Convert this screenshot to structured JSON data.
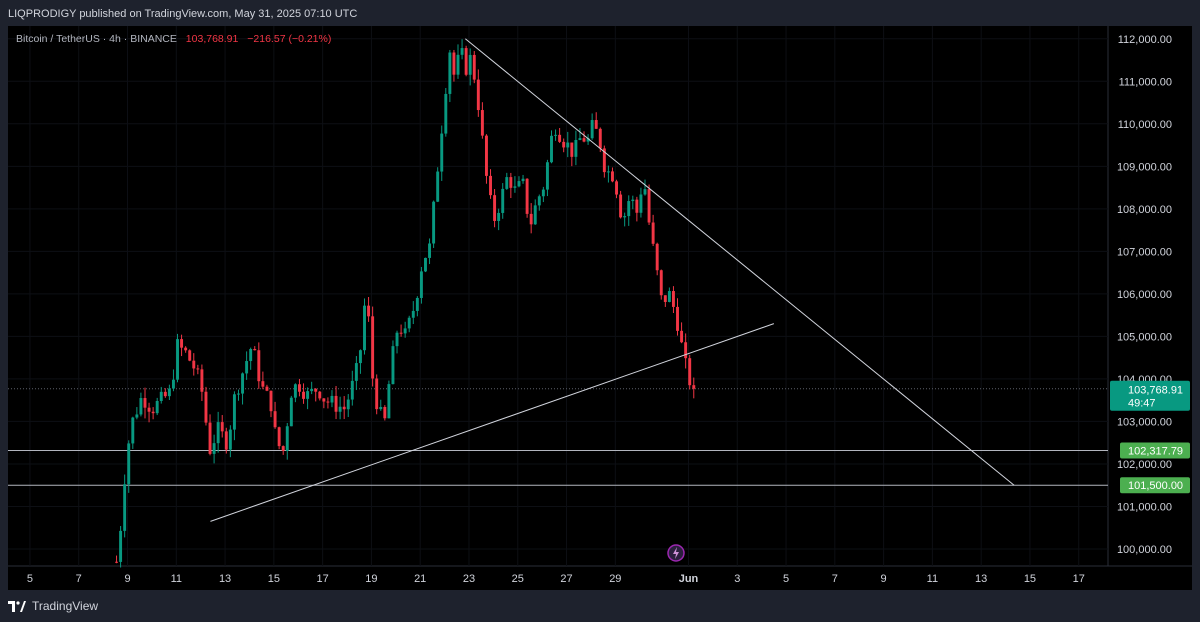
{
  "header": {
    "publisher_line": "LIQPRODIGY published on TradingView.com, May 31, 2025 07:10 UTC"
  },
  "legend": {
    "symbol": "Bitcoin / TetherUS · 4h · BINANCE",
    "price": "103,768.91",
    "change": "−216.57 (−0.21%)"
  },
  "footer": {
    "brand": "TradingView"
  },
  "colors": {
    "up": "#089981",
    "down": "#f23645",
    "background": "#000000",
    "last_price_tag": "#089981",
    "level_tag": "#4caf50"
  },
  "chart_data": {
    "type": "candlestick",
    "title": "Bitcoin / TetherUS · 4h · BINANCE",
    "y_ticks": [
      "112,000.00",
      "111,000.00",
      "110,000.00",
      "109,000.00",
      "108,000.00",
      "107,000.00",
      "106,000.00",
      "105,000.00",
      "104,000.00",
      "103,000.00",
      "102,000.00",
      "101,000.00",
      "100,000.00"
    ],
    "y_tick_values": [
      112000,
      111000,
      110000,
      109000,
      108000,
      107000,
      106000,
      105000,
      104000,
      103000,
      102000,
      101000,
      100000
    ],
    "x_ticks": [
      {
        "label": "5",
        "day": 5
      },
      {
        "label": "7",
        "day": 7
      },
      {
        "label": "9",
        "day": 9
      },
      {
        "label": "11",
        "day": 11
      },
      {
        "label": "13",
        "day": 13
      },
      {
        "label": "15",
        "day": 15
      },
      {
        "label": "17",
        "day": 17
      },
      {
        "label": "19",
        "day": 19
      },
      {
        "label": "21",
        "day": 21
      },
      {
        "label": "23",
        "day": 23
      },
      {
        "label": "25",
        "day": 25
      },
      {
        "label": "27",
        "day": 27
      },
      {
        "label": "29",
        "day": 29
      },
      {
        "label": "Jun",
        "day": 32,
        "bold": true
      },
      {
        "label": "3",
        "day": 34
      },
      {
        "label": "5",
        "day": 36
      },
      {
        "label": "7",
        "day": 38
      },
      {
        "label": "9",
        "day": 40
      },
      {
        "label": "11",
        "day": 42
      },
      {
        "label": "13",
        "day": 44
      },
      {
        "label": "15",
        "day": 46
      },
      {
        "label": "17",
        "day": 48
      }
    ],
    "ylim": [
      99600,
      112300
    ],
    "xlim_days": [
      4.1,
      49.2
    ],
    "last_price": {
      "value": 103768.91,
      "label": "103,768.91",
      "countdown": "49:47"
    },
    "horizontal_levels": [
      {
        "value": 102317.79,
        "label": "102,317.79"
      },
      {
        "value": 101500.0,
        "label": "101,500.00"
      }
    ],
    "trendlines": [
      {
        "name": "descending resistance",
        "from": {
          "day": 22.85,
          "price": 112000
        },
        "to": {
          "day": 45.35,
          "price": 101500
        }
      },
      {
        "name": "ascending support",
        "from": {
          "day": 12.4,
          "price": 100650
        },
        "to": {
          "day": 35.5,
          "price": 105300
        }
      }
    ],
    "path": [
      [
        8.55,
        99700
      ],
      [
        8.75,
        100700
      ],
      [
        8.95,
        102200
      ],
      [
        9.2,
        103000
      ],
      [
        9.6,
        103600
      ],
      [
        10.0,
        103300
      ],
      [
        10.4,
        103500
      ],
      [
        10.8,
        103700
      ],
      [
        11.0,
        104800
      ],
      [
        11.4,
        104600
      ],
      [
        11.8,
        104200
      ],
      [
        12.1,
        103600
      ],
      [
        12.35,
        102300
      ],
      [
        12.7,
        102800
      ],
      [
        13.1,
        102500
      ],
      [
        13.4,
        103600
      ],
      [
        13.8,
        104300
      ],
      [
        14.1,
        104800
      ],
      [
        14.5,
        103800
      ],
      [
        14.9,
        103400
      ],
      [
        15.1,
        102500
      ],
      [
        15.4,
        102300
      ],
      [
        15.7,
        103700
      ],
      [
        16.0,
        103900
      ],
      [
        16.4,
        103600
      ],
      [
        16.8,
        103800
      ],
      [
        17.1,
        103500
      ],
      [
        17.5,
        103400
      ],
      [
        17.9,
        103300
      ],
      [
        18.2,
        103800
      ],
      [
        18.5,
        104400
      ],
      [
        18.8,
        106200
      ],
      [
        19.0,
        104200
      ],
      [
        19.3,
        103200
      ],
      [
        19.55,
        103000
      ],
      [
        19.8,
        104300
      ],
      [
        20.1,
        105300
      ],
      [
        20.4,
        105000
      ],
      [
        20.8,
        105800
      ],
      [
        21.1,
        106800
      ],
      [
        21.4,
        107100
      ],
      [
        21.7,
        108900
      ],
      [
        21.95,
        110300
      ],
      [
        22.2,
        111800
      ],
      [
        22.4,
        111100
      ],
      [
        22.65,
        111700
      ],
      [
        22.9,
        111300
      ],
      [
        23.1,
        111600
      ],
      [
        23.4,
        110400
      ],
      [
        23.7,
        108800
      ],
      [
        24.0,
        107700
      ],
      [
        24.3,
        108200
      ],
      [
        24.6,
        108800
      ],
      [
        24.9,
        108400
      ],
      [
        25.2,
        108600
      ],
      [
        25.5,
        107600
      ],
      [
        25.8,
        108200
      ],
      [
        26.1,
        108600
      ],
      [
        26.3,
        109400
      ],
      [
        26.5,
        110000
      ],
      [
        26.9,
        109600
      ],
      [
        27.3,
        109300
      ],
      [
        27.6,
        109700
      ],
      [
        27.9,
        109600
      ],
      [
        28.1,
        110000
      ],
      [
        28.4,
        109500
      ],
      [
        28.6,
        108900
      ],
      [
        28.95,
        108800
      ],
      [
        29.3,
        107700
      ],
      [
        29.6,
        108300
      ],
      [
        29.9,
        107900
      ],
      [
        30.15,
        108800
      ],
      [
        30.4,
        107600
      ],
      [
        30.65,
        106700
      ],
      [
        30.9,
        105800
      ],
      [
        31.2,
        106000
      ],
      [
        31.5,
        105500
      ],
      [
        31.8,
        104500
      ],
      [
        32.0,
        104000
      ],
      [
        32.15,
        103900
      ],
      [
        32.3,
        103768.91
      ]
    ]
  }
}
